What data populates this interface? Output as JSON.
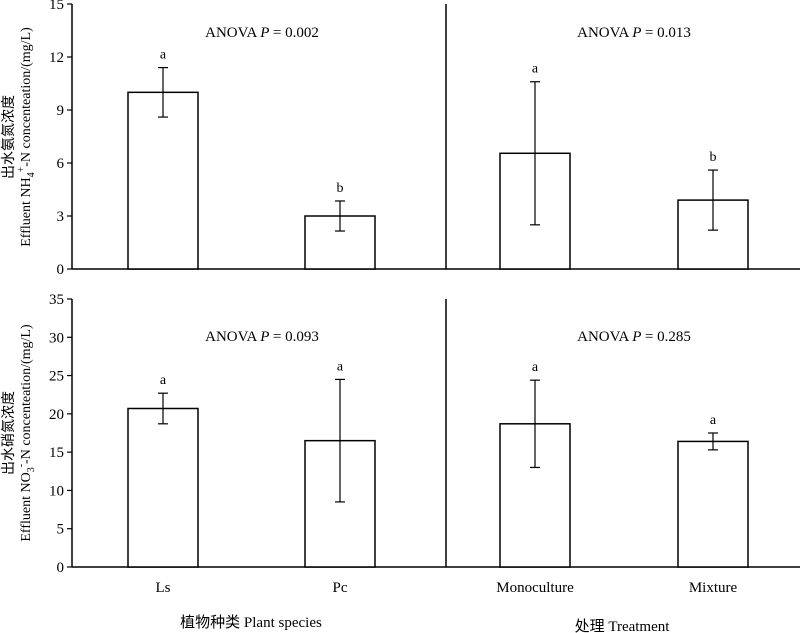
{
  "chart_data": [
    {
      "type": "bar",
      "panel": "top-left",
      "ylabel_line1": "出水氨氮浓度",
      "ylabel_line2_pre": "Effluent NH",
      "ylabel_line2_sub": "4",
      "ylabel_line2_sup": "+",
      "ylabel_line2_post": "-N concenteation/(mg/L)",
      "ylim": [
        0,
        15
      ],
      "yticks": [
        0,
        3,
        6,
        9,
        12,
        15
      ],
      "annotation_prefix": "ANOVA",
      "annotation_p_label": "P",
      "annotation_p_value": "= 0.002",
      "categories": [
        "Ls",
        "Pc"
      ],
      "values": [
        10.0,
        3.0
      ],
      "errors": [
        1.4,
        0.85
      ],
      "significance": [
        "a",
        "b"
      ]
    },
    {
      "type": "bar",
      "panel": "top-right",
      "ylim": [
        0,
        15
      ],
      "annotation_prefix": "ANOVA",
      "annotation_p_label": "P",
      "annotation_p_value": "= 0.013",
      "categories": [
        "Monoculture",
        "Mixture"
      ],
      "values": [
        6.55,
        3.9
      ],
      "errors": [
        4.05,
        1.7
      ],
      "significance": [
        "a",
        "b"
      ]
    },
    {
      "type": "bar",
      "panel": "bottom-left",
      "ylabel_line1": "出水硝氮浓度",
      "ylabel_line2_pre": "Effluent NO",
      "ylabel_line2_sub": "3",
      "ylabel_line2_sup": "-",
      "ylabel_line2_post": "-N concenteation/(mg/L)",
      "ylim": [
        0,
        35
      ],
      "yticks": [
        0,
        5,
        10,
        15,
        20,
        25,
        30,
        35
      ],
      "annotation_prefix": "ANOVA",
      "annotation_p_label": "P",
      "annotation_p_value": "= 0.093",
      "categories": [
        "Ls",
        "Pc"
      ],
      "values": [
        20.7,
        16.5
      ],
      "errors": [
        2.0,
        8.0
      ],
      "significance": [
        "a",
        "a"
      ],
      "xlabel": "植物种类 Plant  species"
    },
    {
      "type": "bar",
      "panel": "bottom-right",
      "ylim": [
        0,
        35
      ],
      "annotation_prefix": "ANOVA",
      "annotation_p_label": "P",
      "annotation_p_value": "= 0.285",
      "categories": [
        "Monoculture",
        "Mixture"
      ],
      "values": [
        18.7,
        16.4
      ],
      "errors": [
        5.7,
        1.1
      ],
      "significance": [
        "a",
        "a"
      ],
      "xlabel": "处理 Treatment"
    }
  ]
}
